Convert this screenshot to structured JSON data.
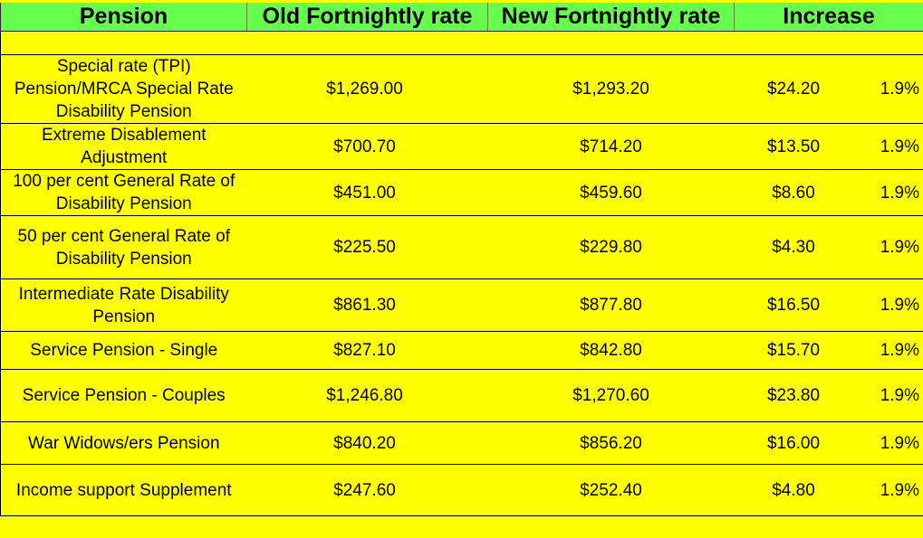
{
  "table": {
    "headers": {
      "pension": "Pension",
      "old_rate": "Old Fortnightly rate",
      "new_rate": "New Fortnightly rate",
      "increase": "Increase"
    },
    "rows": [
      {
        "pension": "Special rate (TPI) Pension/MRCA Special Rate Disability Pension",
        "old_rate": "$1,269.00",
        "new_rate": "$1,293.20",
        "increase": "$24.20",
        "percent": "1.9%"
      },
      {
        "pension": "Extreme Disablement Adjustment",
        "old_rate": "$700.70",
        "new_rate": "$714.20",
        "increase": "$13.50",
        "percent": "1.9%"
      },
      {
        "pension": "100 per cent General Rate of Disability Pension",
        "old_rate": "$451.00",
        "new_rate": "$459.60",
        "increase": "$8.60",
        "percent": "1.9%"
      },
      {
        "pension": "50 per cent General Rate of Disability Pension",
        "old_rate": "$225.50",
        "new_rate": "$229.80",
        "increase": "$4.30",
        "percent": "1.9%"
      },
      {
        "pension": "Intermediate Rate Disability Pension",
        "old_rate": "$861.30",
        "new_rate": "$877.80",
        "increase": "$16.50",
        "percent": "1.9%"
      },
      {
        "pension": "Service Pension - Single",
        "old_rate": "$827.10",
        "new_rate": "$842.80",
        "increase": "$15.70",
        "percent": "1.9%"
      },
      {
        "pension": "Service Pension - Couples",
        "old_rate": "$1,246.80",
        "new_rate": "$1,270.60",
        "increase": "$23.80",
        "percent": "1.9%"
      },
      {
        "pension": "War Widows/ers Pension",
        "old_rate": "$840.20",
        "new_rate": "$856.20",
        "increase": "$16.00",
        "percent": "1.9%"
      },
      {
        "pension": "Income support Supplement",
        "old_rate": "$247.60",
        "new_rate": "$252.40",
        "increase": "$4.80",
        "percent": "1.9%"
      }
    ]
  },
  "colors": {
    "background": "#ffff00",
    "header_background": "#66ff4d"
  }
}
